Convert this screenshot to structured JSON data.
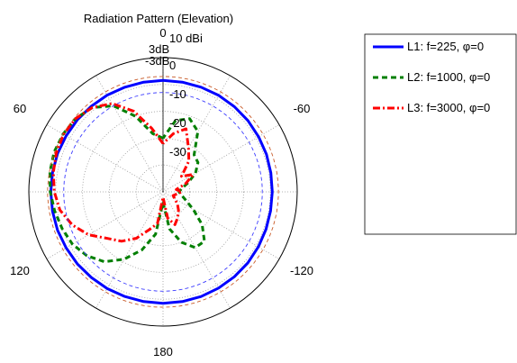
{
  "chart_data": {
    "type": "polar",
    "title": "Radiation Pattern (Elevation)",
    "units": "dBi",
    "r_range": [
      -40,
      10
    ],
    "grid": true,
    "angle_labels": [
      "0",
      "-60",
      "-120",
      "180",
      "120",
      "60"
    ],
    "ring_labels": [
      "10 dBi",
      "0",
      "-10",
      "-20",
      "-30"
    ],
    "reference_labels": [
      "3dB",
      "-3dB"
    ],
    "legend": {
      "placement": "right"
    },
    "series": [
      {
        "name": "L1: f=225, φ=0",
        "color": "#0000ff",
        "style": "solid",
        "points": [
          [
            0,
            1.5
          ],
          [
            10,
            1.5
          ],
          [
            20,
            1.5
          ],
          [
            30,
            1.6
          ],
          [
            40,
            1.6
          ],
          [
            50,
            1.7
          ],
          [
            60,
            1.7
          ],
          [
            70,
            1.8
          ],
          [
            80,
            1.8
          ],
          [
            90,
            1.8
          ],
          [
            100,
            1.8
          ],
          [
            110,
            1.8
          ],
          [
            120,
            1.7
          ],
          [
            130,
            1.7
          ],
          [
            140,
            1.6
          ],
          [
            150,
            1.6
          ],
          [
            160,
            1.5
          ],
          [
            170,
            1.5
          ],
          [
            180,
            1.5
          ],
          [
            190,
            1.5
          ],
          [
            200,
            1.5
          ],
          [
            210,
            1.4
          ],
          [
            220,
            1.3
          ],
          [
            230,
            1.2
          ],
          [
            240,
            1.0
          ],
          [
            250,
            0.8
          ],
          [
            260,
            0.7
          ],
          [
            270,
            0.7
          ],
          [
            280,
            0.8
          ],
          [
            290,
            1.0
          ],
          [
            300,
            1.1
          ],
          [
            310,
            1.3
          ],
          [
            320,
            1.4
          ],
          [
            330,
            1.5
          ],
          [
            340,
            1.5
          ],
          [
            350,
            1.5
          ]
        ]
      },
      {
        "name": "L2: f=1000, φ=0",
        "color": "#007f00",
        "style": "dashed",
        "points": [
          [
            0,
            -20
          ],
          [
            10,
            -18
          ],
          [
            20,
            -10
          ],
          [
            30,
            -3
          ],
          [
            40,
            1
          ],
          [
            50,
            2.5
          ],
          [
            60,
            3
          ],
          [
            70,
            3.2
          ],
          [
            80,
            2.8
          ],
          [
            90,
            2
          ],
          [
            100,
            1
          ],
          [
            110,
            0
          ],
          [
            120,
            -1
          ],
          [
            130,
            -3
          ],
          [
            140,
            -6
          ],
          [
            150,
            -11
          ],
          [
            160,
            -17
          ],
          [
            170,
            -24
          ],
          [
            180,
            -36
          ],
          [
            190,
            -26
          ],
          [
            200,
            -20
          ],
          [
            210,
            -16
          ],
          [
            220,
            -16
          ],
          [
            230,
            -21
          ],
          [
            240,
            -27
          ],
          [
            250,
            -31
          ],
          [
            260,
            -33
          ],
          [
            270,
            -34
          ],
          [
            280,
            -33
          ],
          [
            290,
            -30
          ],
          [
            300,
            -26
          ],
          [
            310,
            -23
          ],
          [
            320,
            -22
          ],
          [
            330,
            -14
          ],
          [
            340,
            -11
          ],
          [
            350,
            -13
          ]
        ]
      },
      {
        "name": "L3: f=3000, φ=0",
        "color": "#ff0000",
        "style": "dashdot",
        "points": [
          [
            0,
            -22
          ],
          [
            10,
            -16
          ],
          [
            20,
            -8
          ],
          [
            30,
            -2
          ],
          [
            40,
            1
          ],
          [
            50,
            2.5
          ],
          [
            60,
            2.8
          ],
          [
            70,
            2.3
          ],
          [
            80,
            1.5
          ],
          [
            90,
            0.5
          ],
          [
            100,
            -1
          ],
          [
            110,
            -4
          ],
          [
            120,
            -8
          ],
          [
            130,
            -13
          ],
          [
            140,
            -16
          ],
          [
            150,
            -20
          ],
          [
            160,
            -25
          ],
          [
            170,
            -28
          ],
          [
            180,
            -38
          ],
          [
            190,
            -30
          ],
          [
            200,
            -27
          ],
          [
            210,
            -29
          ],
          [
            220,
            -31
          ],
          [
            230,
            -33
          ],
          [
            240,
            -35
          ],
          [
            250,
            -36
          ],
          [
            260,
            -35
          ],
          [
            270,
            -33
          ],
          [
            280,
            -35
          ],
          [
            290,
            -31
          ],
          [
            300,
            -27
          ],
          [
            310,
            -31
          ],
          [
            320,
            -25
          ],
          [
            330,
            -21
          ],
          [
            340,
            -15
          ],
          [
            350,
            -18
          ]
        ]
      },
      {
        "name": "3dB",
        "color": "#c85a28",
        "style": "dashed-thin",
        "points": [
          [
            0,
            3
          ],
          [
            60,
            3
          ],
          [
            120,
            3
          ],
          [
            180,
            3
          ],
          [
            240,
            3
          ],
          [
            300,
            3
          ]
        ]
      },
      {
        "name": "-3dB",
        "color": "#3c3cff",
        "style": "dashed-thin",
        "points": [
          [
            0,
            -3
          ],
          [
            60,
            -3
          ],
          [
            120,
            -3
          ],
          [
            180,
            -3
          ],
          [
            240,
            -3
          ],
          [
            300,
            -3
          ]
        ]
      }
    ]
  }
}
